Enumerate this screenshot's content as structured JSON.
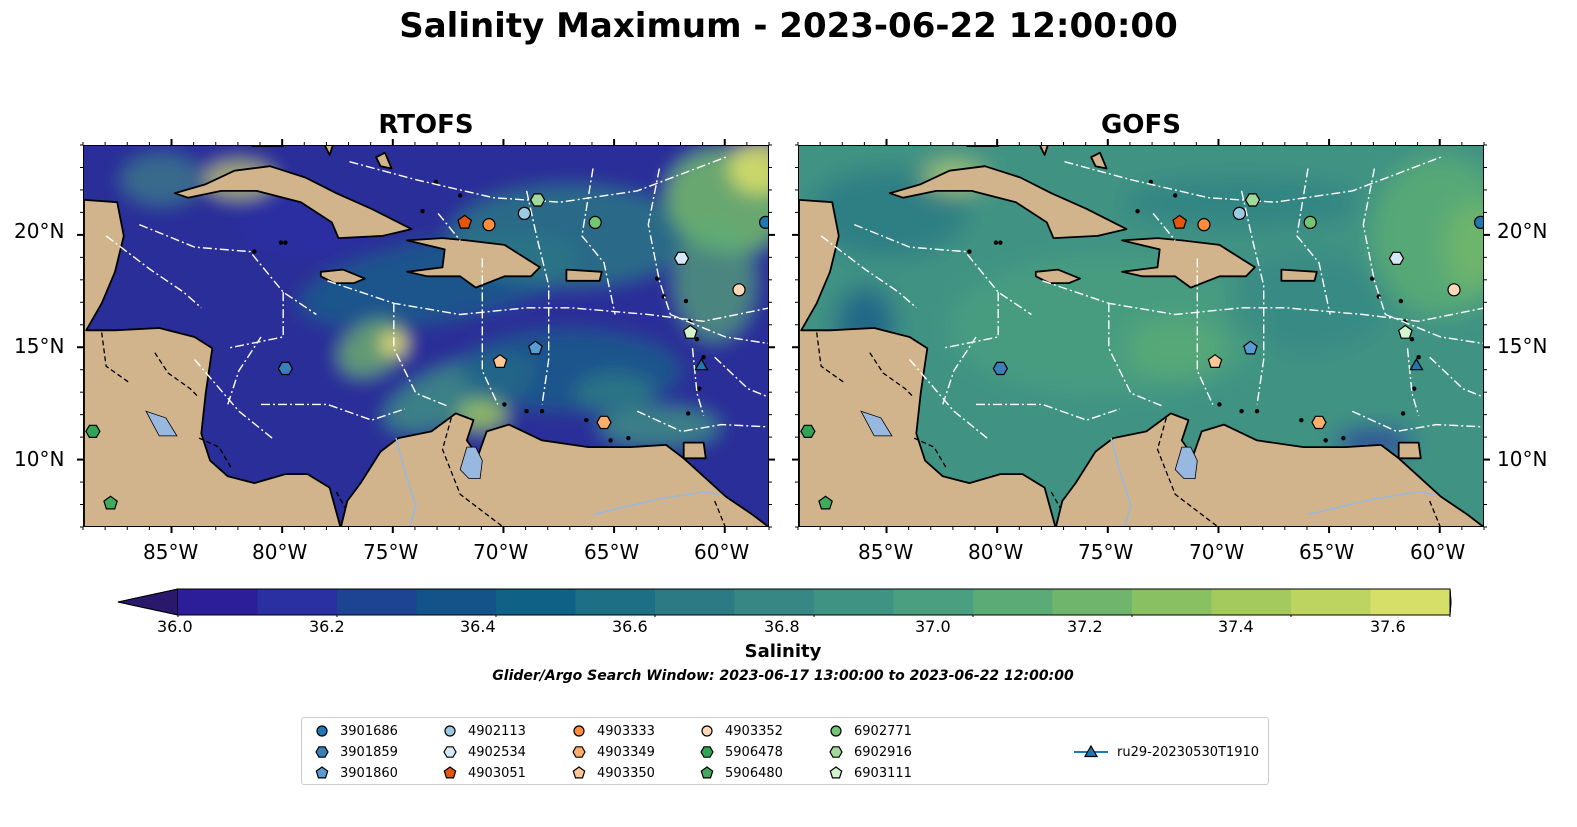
{
  "figure": {
    "title": "Salinity Maximum - 2023-06-22 12:00:00"
  },
  "panels": [
    {
      "title": "RTOFS",
      "model": "rtofs"
    },
    {
      "title": "GOFS",
      "model": "gofs"
    }
  ],
  "axes": {
    "x_ticks": [
      "85°W",
      "80°W",
      "75°W",
      "70°W",
      "65°W",
      "60°W"
    ],
    "y_ticks": [
      "20°N",
      "15°N",
      "10°N"
    ],
    "lon_range": [
      -89,
      -58
    ],
    "lat_range": [
      7,
      24
    ]
  },
  "colorbar": {
    "label": "Salinity",
    "ticks": [
      "36.0",
      "36.2",
      "36.4",
      "36.6",
      "36.8",
      "37.0",
      "37.2",
      "37.4",
      "37.6"
    ],
    "range": [
      36.0,
      37.6
    ],
    "colormap": "haline",
    "extend": "both",
    "colors": [
      "#2a186c",
      "#2c1e98",
      "#2a2fa1",
      "#1d4393",
      "#135389",
      "#0f6185",
      "#1d6f85",
      "#2c7b84",
      "#378784",
      "#3f9383",
      "#499f7f",
      "#5aab76",
      "#70b56c",
      "#89c062",
      "#a4ca5d",
      "#bdd560",
      "#d6df68",
      "#f1e674"
    ]
  },
  "search_window": "Glider/Argo Search Window: 2023-06-17 13:00:00 to 2023-06-22 12:00:00",
  "colors": {
    "land": "#d2b48c",
    "lakes": "#98b8e0"
  },
  "legend": {
    "items": [
      {
        "label": "3901686",
        "marker": "circle",
        "color": "#1f77b4"
      },
      {
        "label": "3901859",
        "marker": "hexagon",
        "color": "#3a7fb8"
      },
      {
        "label": "3901860",
        "marker": "pentagon",
        "color": "#5a9bd4"
      },
      {
        "label": "4902113",
        "marker": "circle",
        "color": "#9ecae1"
      },
      {
        "label": "4902534",
        "marker": "hexagon",
        "color": "#d6e8f6"
      },
      {
        "label": "4903051",
        "marker": "pentagon",
        "color": "#e6550d"
      },
      {
        "label": "4903333",
        "marker": "circle",
        "color": "#fd8d3c"
      },
      {
        "label": "4903349",
        "marker": "hexagon",
        "color": "#fdae6b"
      },
      {
        "label": "4903350",
        "marker": "pentagon",
        "color": "#fdc896"
      },
      {
        "label": "4903352",
        "marker": "circle",
        "color": "#fdd9b8"
      },
      {
        "label": "5906478",
        "marker": "hexagon",
        "color": "#31a354"
      },
      {
        "label": "5906480",
        "marker": "pentagon",
        "color": "#41ab5d"
      },
      {
        "label": "6902771",
        "marker": "circle",
        "color": "#74c476"
      },
      {
        "label": "6902916",
        "marker": "hexagon",
        "color": "#a1d99b"
      },
      {
        "label": "6903111",
        "marker": "pentagon",
        "color": "#d4f4cf"
      },
      {
        "label": "ru29-20230530T1910",
        "marker": "triangle",
        "color": "#1f77b4"
      }
    ]
  },
  "observations": [
    {
      "id": "3901686",
      "lon": -58.2,
      "lat": 20.6
    },
    {
      "id": "3901859",
      "lon": -79.9,
      "lat": 14.1
    },
    {
      "id": "3901860",
      "lon": -68.6,
      "lat": 15.0
    },
    {
      "id": "4902113",
      "lon": -69.1,
      "lat": 21.0
    },
    {
      "id": "4902534",
      "lon": -62.0,
      "lat": 19.0
    },
    {
      "id": "4903051",
      "lon": -71.8,
      "lat": 20.6
    },
    {
      "id": "4903333",
      "lon": -70.7,
      "lat": 20.5
    },
    {
      "id": "4903349",
      "lon": -65.5,
      "lat": 11.7
    },
    {
      "id": "4903350",
      "lon": -70.2,
      "lat": 14.4
    },
    {
      "id": "4903352",
      "lon": -59.4,
      "lat": 17.6
    },
    {
      "id": "5906478",
      "lon": -88.6,
      "lat": 11.3
    },
    {
      "id": "5906480",
      "lon": -87.8,
      "lat": 8.1
    },
    {
      "id": "6902771",
      "lon": -65.9,
      "lat": 20.6
    },
    {
      "id": "6902916",
      "lon": -68.5,
      "lat": 21.6
    },
    {
      "id": "6903111",
      "lon": -61.6,
      "lat": 15.7
    },
    {
      "id": "ru29-20230530T1910",
      "lon": -61.1,
      "lat": 14.2
    }
  ]
}
